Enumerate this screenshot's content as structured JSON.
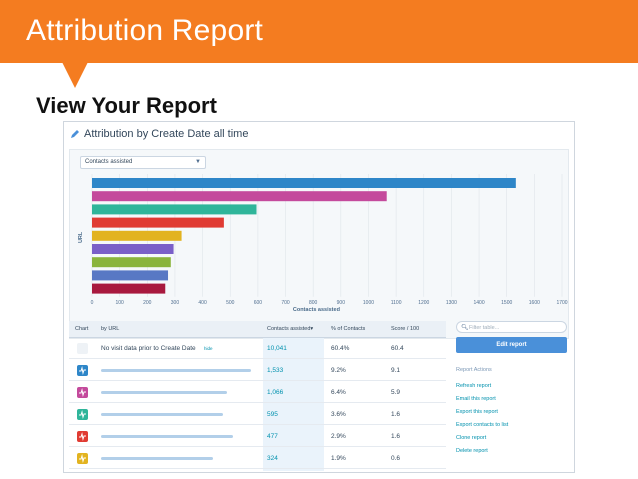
{
  "slide": {
    "banner_title": "Attribution Report",
    "subtitle": "View Your Report",
    "banner_color": "#f47c20"
  },
  "report": {
    "title": "Attribution by Create Date all time",
    "title_icon": "pencil-icon",
    "dropdown_value": "Contacts assisted"
  },
  "chart_data": {
    "type": "bar",
    "orientation": "horizontal",
    "ylabel": "URL",
    "xlabel": "Contacts assisted",
    "xlim": [
      0,
      1700
    ],
    "x_ticks": [
      "0",
      "100",
      "200",
      "300",
      "400",
      "500",
      "600",
      "700",
      "800",
      "900",
      "1000",
      "1100",
      "1200",
      "1300",
      "1400",
      "1500",
      "1600",
      "1700"
    ],
    "grid": true,
    "values": [
      1533,
      1066,
      595,
      477,
      324,
      295,
      285,
      275,
      265
    ],
    "colors": [
      "#2e86c8",
      "#c44a9c",
      "#2fb59a",
      "#e03b33",
      "#e2b320",
      "#7a5fc8",
      "#8ab43c",
      "#5878c4",
      "#a8193e"
    ]
  },
  "table": {
    "headers": [
      "Chart",
      "by URL",
      "Contacts assisted▾",
      "% of Contacts",
      "Score / 100"
    ],
    "rows": [
      {
        "label": "No visit data prior to Create Date",
        "hide": "hide",
        "contacts": "10,041",
        "pct": "60.4%",
        "score": "60.4",
        "chip_color": ""
      },
      {
        "label": "",
        "hide": "",
        "contacts": "1,533",
        "pct": "9.2%",
        "score": "9.1",
        "chip_color": "#2e86c8"
      },
      {
        "label": "",
        "hide": "",
        "contacts": "1,066",
        "pct": "6.4%",
        "score": "5.9",
        "chip_color": "#c44a9c"
      },
      {
        "label": "",
        "hide": "",
        "contacts": "595",
        "pct": "3.6%",
        "score": "1.6",
        "chip_color": "#2fb59a"
      },
      {
        "label": "",
        "hide": "",
        "contacts": "477",
        "pct": "2.9%",
        "score": "1.6",
        "chip_color": "#e03b33"
      },
      {
        "label": "",
        "hide": "",
        "contacts": "324",
        "pct": "1.9%",
        "score": "0.6",
        "chip_color": "#e2b320"
      }
    ]
  },
  "sidebar": {
    "filter_placeholder": "Filter table...",
    "edit_button": "Edit report",
    "actions_heading": "Report Actions",
    "actions": [
      "Refresh report",
      "Email this report",
      "Export this report",
      "Export contacts to list",
      "Clone report",
      "Delete report"
    ]
  }
}
